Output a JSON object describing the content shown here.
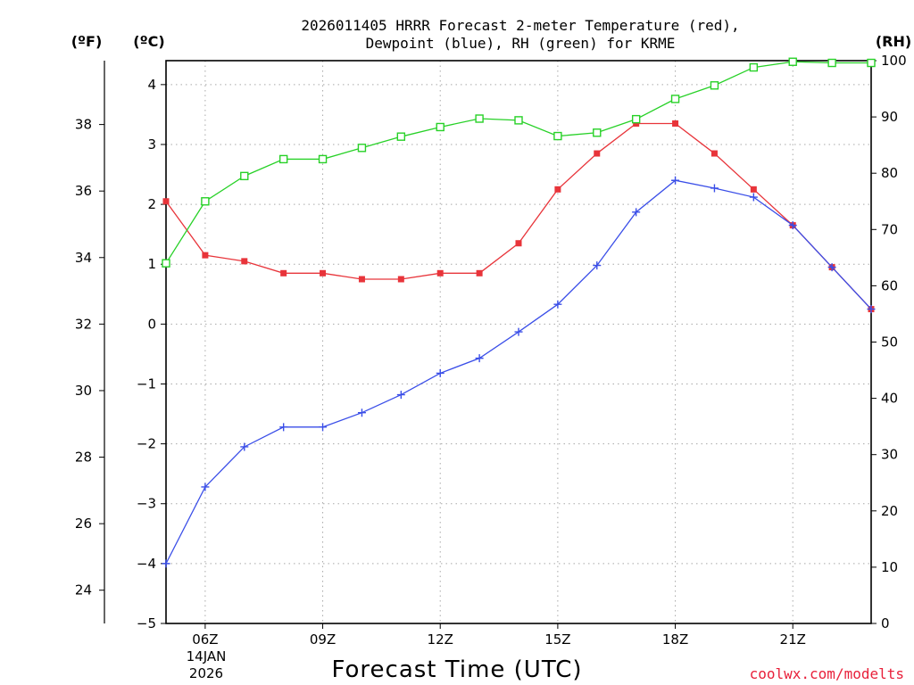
{
  "chart_data": {
    "type": "line",
    "title_line1": "2026011405 HRRR Forecast 2-meter Temperature (red),",
    "title_line2": "Dewpoint (blue), RH (green) for KRME",
    "xlabel": "Forecast Time (UTC)",
    "credit": "coolwx.com/modelts",
    "unit_left_f": "(ºF)",
    "unit_left_c": "(ºC)",
    "unit_right": "(RH)",
    "x_hours": [
      5,
      6,
      7,
      8,
      9,
      10,
      11,
      12,
      13,
      14,
      15,
      16,
      17,
      18,
      19,
      20,
      21,
      22,
      23
    ],
    "x_tick_hours": [
      6,
      9,
      12,
      15,
      18,
      21
    ],
    "x_tick_labels": [
      "06Z",
      "09Z",
      "12Z",
      "15Z",
      "18Z",
      "21Z"
    ],
    "date_label_1": "14JAN",
    "date_label_2": "2026",
    "xlim": [
      5,
      23
    ],
    "y_celsius": {
      "ylim": [
        -5,
        4.4
      ],
      "ticks": [
        -5,
        -4,
        -3,
        -2,
        -1,
        0,
        1,
        2,
        3,
        4
      ],
      "tick_labels": [
        "−5",
        "−4",
        "−3",
        "−2",
        "−1",
        "0",
        "1",
        "2",
        "3",
        "4"
      ]
    },
    "y_fahrenheit": {
      "ticks": [
        24,
        26,
        28,
        30,
        32,
        34,
        36,
        38
      ],
      "tick_labels": [
        "24",
        "26",
        "28",
        "30",
        "32",
        "34",
        "36",
        "38"
      ]
    },
    "y_rh": {
      "ylim": [
        0,
        100
      ],
      "ticks": [
        0,
        10,
        20,
        30,
        40,
        50,
        60,
        70,
        80,
        90,
        100
      ],
      "tick_labels": [
        "0",
        "10",
        "20",
        "30",
        "40",
        "50",
        "60",
        "70",
        "80",
        "90",
        "100"
      ]
    },
    "series": [
      {
        "name": "2-meter Temperature",
        "color": "#e8343a",
        "marker": "filled-square",
        "axis": "celsius",
        "values": [
          2.05,
          1.15,
          1.05,
          0.85,
          0.85,
          0.75,
          0.75,
          0.85,
          0.85,
          1.35,
          2.25,
          2.85,
          3.35,
          3.35,
          2.85,
          2.25,
          1.65,
          0.95,
          0.25
        ]
      },
      {
        "name": "Dewpoint",
        "color": "#3a4ee8",
        "marker": "plus",
        "axis": "celsius",
        "values": [
          -4.0,
          -2.72,
          -2.05,
          -1.72,
          -1.72,
          -1.48,
          -1.18,
          -0.82,
          -0.57,
          -0.13,
          0.33,
          0.98,
          1.87,
          2.4,
          2.27,
          2.12,
          1.65,
          0.95,
          0.25
        ]
      },
      {
        "name": "RH",
        "color": "#27d127",
        "marker": "open-square",
        "axis": "rh",
        "values": [
          64,
          75,
          79.5,
          82.5,
          82.5,
          84.5,
          86.5,
          88.2,
          89.7,
          89.4,
          86.6,
          87.2,
          89.6,
          93.2,
          95.6,
          98.8,
          99.8,
          99.6,
          99.6
        ]
      }
    ]
  }
}
